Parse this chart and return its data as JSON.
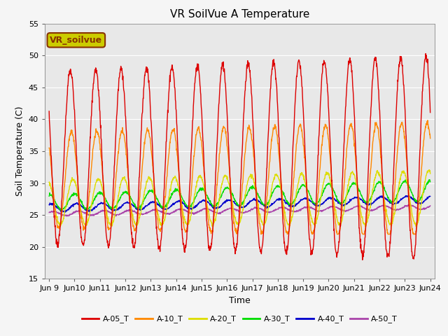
{
  "title": "VR SoilVue A Temperature",
  "ylabel": "Soil Temperature (C)",
  "xlabel": "Time",
  "ylim": [
    15,
    55
  ],
  "xlim_days": [
    8.83,
    24.17
  ],
  "x_tick_positions": [
    9,
    10,
    11,
    12,
    13,
    14,
    15,
    16,
    17,
    18,
    19,
    20,
    21,
    22,
    23,
    24
  ],
  "x_tick_labels": [
    "Jun 9",
    "Jun 10",
    "Jun 11",
    "Jun 12",
    "Jun 13",
    "Jun 14",
    "Jun 15",
    "Jun 16",
    "Jun 17",
    "Jun 18",
    "Jun 19",
    "Jun 20",
    "Jun 21",
    "Jun 22",
    "Jun 23",
    "Jun 24"
  ],
  "yticks": [
    15,
    20,
    25,
    30,
    35,
    40,
    45,
    50,
    55
  ],
  "series_colors": {
    "A-05_T": "#dd0000",
    "A-10_T": "#ff8800",
    "A-20_T": "#dddd00",
    "A-30_T": "#00dd00",
    "A-40_T": "#0000cc",
    "A-50_T": "#aa44aa"
  },
  "series_names": [
    "A-05_T",
    "A-10_T",
    "A-20_T",
    "A-30_T",
    "A-40_T",
    "A-50_T"
  ],
  "legend_label": "VR_soilvue",
  "legend_box_facecolor": "#cccc00",
  "legend_box_edgecolor": "#883300",
  "legend_text_color": "#883300",
  "plot_bg_color": "#e8e8e8",
  "fig_bg_color": "#f5f5f5",
  "grid_color": "#ffffff",
  "title_fontsize": 11,
  "axis_label_fontsize": 9,
  "tick_fontsize": 8,
  "legend_fontsize": 8
}
